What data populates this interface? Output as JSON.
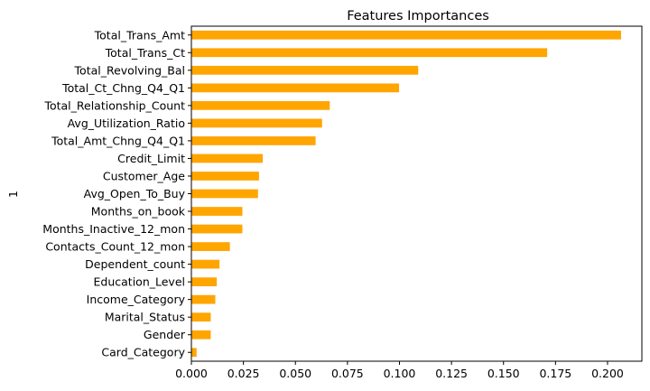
{
  "chart_data": {
    "type": "bar",
    "orientation": "horizontal",
    "title": "Features Importances",
    "xlabel": "",
    "ylabel": "1",
    "xlim": [
      0,
      0.2165
    ],
    "xticks": [
      0.0,
      0.025,
      0.05,
      0.075,
      0.1,
      0.125,
      0.15,
      0.175,
      0.2
    ],
    "xtick_labels": [
      "0.000",
      "0.025",
      "0.050",
      "0.075",
      "0.100",
      "0.125",
      "0.150",
      "0.175",
      "0.200"
    ],
    "grid": false,
    "bar_color": "#ffa500",
    "categories": [
      "Total_Trans_Amt",
      "Total_Trans_Ct",
      "Total_Revolving_Bal",
      "Total_Ct_Chng_Q4_Q1",
      "Total_Relationship_Count",
      "Avg_Utilization_Ratio",
      "Total_Amt_Chng_Q4_Q1",
      "Credit_Limit",
      "Customer_Age",
      "Avg_Open_To_Buy",
      "Months_on_book",
      "Months_Inactive_12_mon",
      "Contacts_Count_12_mon",
      "Dependent_count",
      "Education_Level",
      "Income_Category",
      "Marital_Status",
      "Gender",
      "Card_Category"
    ],
    "values": [
      0.2065,
      0.171,
      0.109,
      0.0998,
      0.0665,
      0.0628,
      0.0597,
      0.0343,
      0.0325,
      0.032,
      0.0245,
      0.0245,
      0.0185,
      0.0135,
      0.0122,
      0.0115,
      0.0093,
      0.0093,
      0.0025
    ]
  }
}
